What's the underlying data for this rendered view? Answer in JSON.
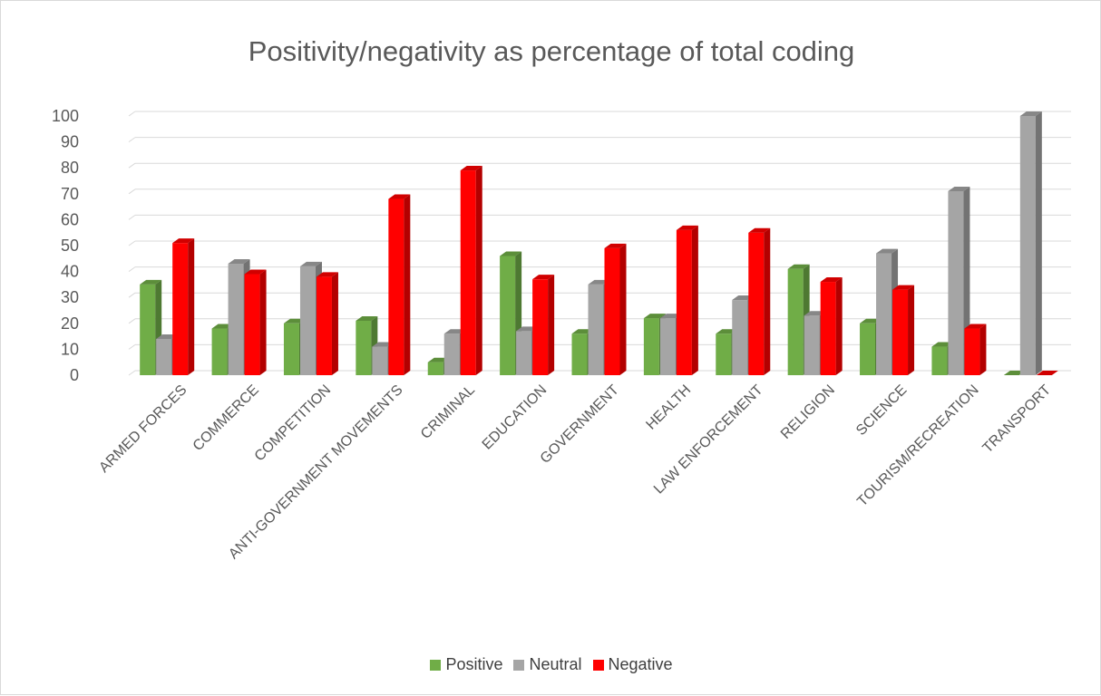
{
  "chart_data": {
    "type": "bar",
    "title": "Positivity/negativity as percentage of total coding",
    "xlabel": "",
    "ylabel": "",
    "ylim": [
      0,
      100
    ],
    "yticks": [
      0,
      10,
      20,
      30,
      40,
      50,
      60,
      70,
      80,
      90,
      100
    ],
    "grid": true,
    "legend_position": "bottom",
    "categories": [
      "ARMED FORCES",
      "COMMERCE",
      "COMPETITION",
      "ANTI-GOVERNMENT MOVEMENTS",
      "CRIMINAL",
      "EDUCATION",
      "GOVERNMENT",
      "HEALTH",
      "LAW ENFORCEMENT",
      "RELIGION",
      "SCIENCE",
      "TOURISM/RECREATION",
      "TRANSPORT"
    ],
    "series": [
      {
        "name": "Positive",
        "color": "#70ad47",
        "values": [
          35,
          18,
          20,
          21,
          5,
          46,
          16,
          22,
          16,
          41,
          20,
          11,
          0
        ]
      },
      {
        "name": "Neutral",
        "color": "#a5a5a5",
        "values": [
          14,
          43,
          42,
          11,
          16,
          17,
          35,
          22,
          29,
          23,
          47,
          71,
          100
        ]
      },
      {
        "name": "Negative",
        "color": "#ff0000",
        "values": [
          51,
          39,
          38,
          68,
          79,
          37,
          49,
          56,
          55,
          36,
          33,
          18,
          0
        ]
      }
    ]
  }
}
